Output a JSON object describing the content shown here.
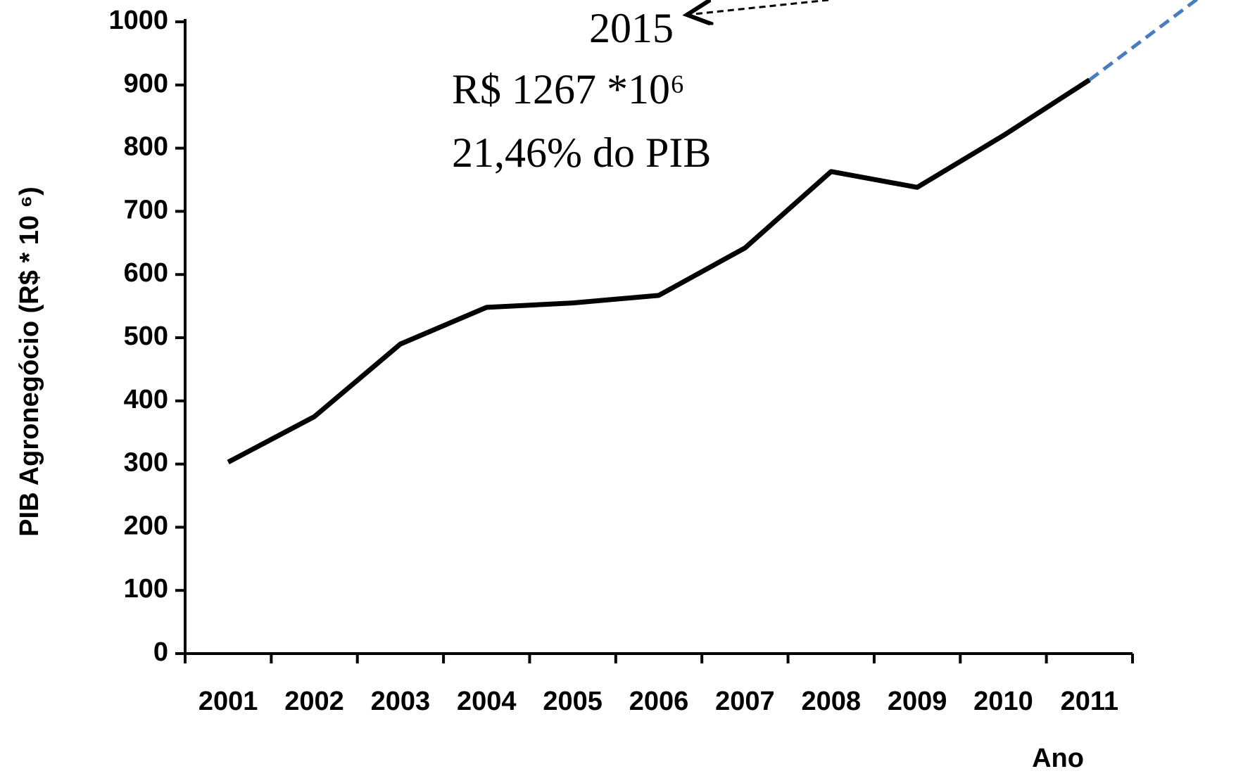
{
  "chart_data": {
    "type": "line",
    "y_label": "PIB Agronegócio (R$ * 10 ⁶)",
    "x_label": "Ano",
    "annotations": [
      "2015",
      "R$ 1267 *10⁶",
      "21,46% do PIB"
    ],
    "categories": [
      "2001",
      "2002",
      "2003",
      "2004",
      "2005",
      "2006",
      "2007",
      "2008",
      "2009",
      "2010",
      "2011"
    ],
    "values": [
      303,
      375,
      490,
      548,
      555,
      567,
      642,
      763,
      738,
      820,
      908
    ],
    "color": "#000000",
    "ylim": [
      0,
      1000
    ],
    "yticks": [
      0,
      100,
      200,
      300,
      400,
      500,
      600,
      700,
      800,
      900,
      1000
    ],
    "grid": false
  }
}
